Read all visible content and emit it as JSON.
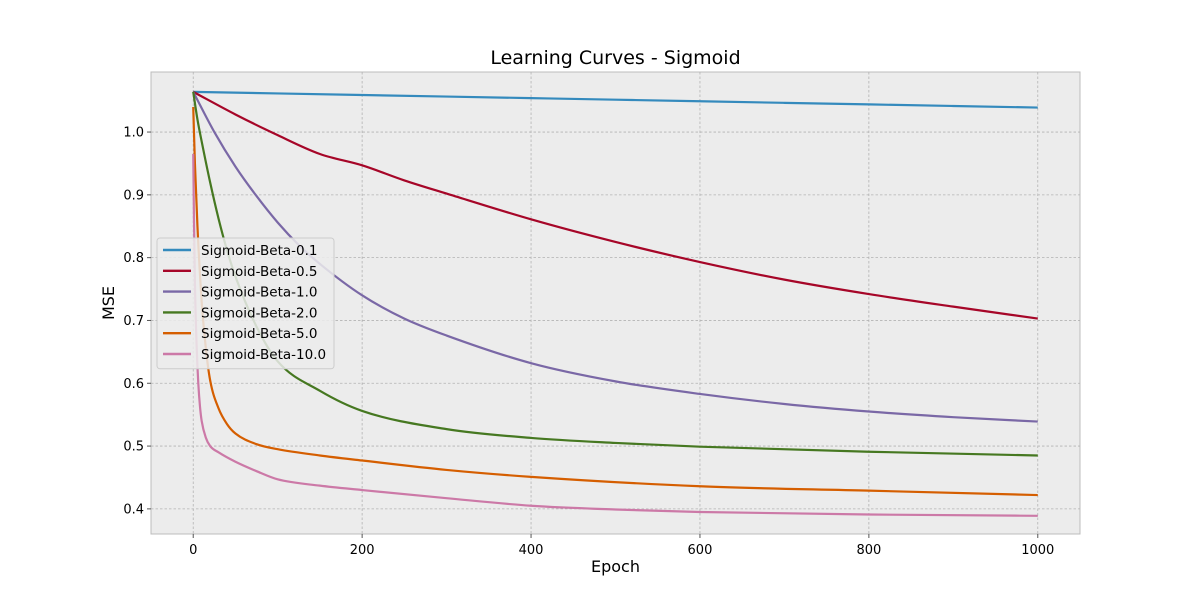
{
  "chart_data": {
    "type": "line",
    "title": "Learning Curves - Sigmoid",
    "xlabel": "Epoch",
    "ylabel": "MSE",
    "xlim": [
      -50,
      1050
    ],
    "ylim": [
      0.36,
      1.0956
    ],
    "x_ticks": [
      0,
      200,
      400,
      600,
      800,
      1000
    ],
    "y_ticks": [
      0.4,
      0.5,
      0.6,
      0.7,
      0.8,
      0.9,
      1.0
    ],
    "x_tick_labels": [
      "0",
      "200",
      "400",
      "600",
      "800",
      "1000"
    ],
    "y_tick_labels": [
      "0.4",
      "0.5",
      "0.6",
      "0.7",
      "0.8",
      "0.9",
      "1.0"
    ],
    "grid": true,
    "legend_position": "center-left",
    "background_color": "#ececec",
    "series": [
      {
        "name": "Sigmoid-Beta-0.1",
        "color": "#348abd",
        "x": [
          0,
          100,
          200,
          300,
          400,
          500,
          600,
          700,
          800,
          900,
          1000
        ],
        "y": [
          1.064,
          1.0615,
          1.059,
          1.0565,
          1.054,
          1.0515,
          1.049,
          1.0465,
          1.044,
          1.0415,
          1.039
        ]
      },
      {
        "name": "Sigmoid-Beta-0.5",
        "color": "#a60628",
        "x": [
          0,
          50,
          100,
          150,
          200,
          250,
          300,
          400,
          500,
          600,
          700,
          800,
          900,
          1000
        ],
        "y": [
          1.064,
          1.028,
          0.995,
          0.965,
          0.947,
          0.923,
          0.902,
          0.861,
          0.825,
          0.793,
          0.765,
          0.742,
          0.722,
          0.703
        ]
      },
      {
        "name": "Sigmoid-Beta-1.0",
        "color": "#7a68a6",
        "x": [
          0,
          25,
          50,
          75,
          100,
          125,
          150,
          200,
          250,
          300,
          400,
          500,
          600,
          700,
          800,
          900,
          1000
        ],
        "y": [
          1.064,
          1.0,
          0.945,
          0.898,
          0.856,
          0.82,
          0.79,
          0.74,
          0.703,
          0.676,
          0.632,
          0.603,
          0.583,
          0.567,
          0.555,
          0.546,
          0.539
        ]
      },
      {
        "name": "Sigmoid-Beta-2.0",
        "color": "#467821",
        "x": [
          0,
          5,
          10,
          20,
          30,
          40,
          50,
          75,
          100,
          150,
          200,
          300,
          400,
          500,
          600,
          800,
          1000
        ],
        "y": [
          1.064,
          1.02,
          0.985,
          0.92,
          0.862,
          0.812,
          0.77,
          0.69,
          0.635,
          0.588,
          0.556,
          0.527,
          0.513,
          0.505,
          0.499,
          0.491,
          0.485
        ]
      },
      {
        "name": "Sigmoid-Beta-5.0",
        "color": "#d55e00",
        "x": [
          0,
          2,
          5,
          10,
          15,
          20,
          30,
          40,
          50,
          75,
          100,
          150,
          200,
          300,
          400,
          600,
          800,
          1000
        ],
        "y": [
          1.04,
          0.95,
          0.85,
          0.73,
          0.655,
          0.605,
          0.56,
          0.535,
          0.52,
          0.503,
          0.495,
          0.485,
          0.477,
          0.462,
          0.451,
          0.436,
          0.429,
          0.422
        ]
      },
      {
        "name": "Sigmoid-Beta-10.0",
        "color": "#cc79a7",
        "x": [
          0,
          1,
          2,
          4,
          6,
          8,
          10,
          15,
          20,
          30,
          50,
          75,
          100,
          150,
          200,
          300,
          400,
          500,
          600,
          800,
          1000
        ],
        "y": [
          0.965,
          0.85,
          0.76,
          0.66,
          0.6,
          0.563,
          0.54,
          0.513,
          0.5,
          0.49,
          0.475,
          0.46,
          0.447,
          0.437,
          0.43,
          0.417,
          0.405,
          0.399,
          0.395,
          0.391,
          0.389
        ]
      }
    ]
  }
}
